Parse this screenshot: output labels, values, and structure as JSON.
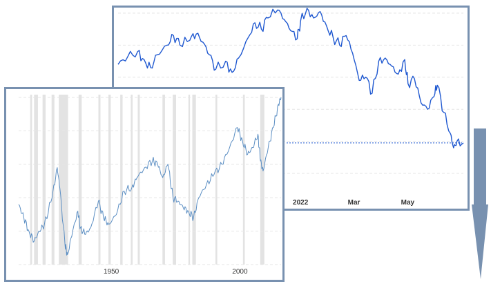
{
  "chart_data": [
    {
      "type": "line",
      "title": "",
      "xlabel": "",
      "ylabel": "",
      "x_tick_labels": [
        "2022",
        "Mar",
        "May"
      ],
      "x_ticks": [
        2022.0,
        2022.164,
        2022.329
      ],
      "xlim": [
        2021.44,
        2022.5
      ],
      "ylim": [
        0,
        100
      ],
      "grid": true,
      "series": [
        {
          "values": [
            [
              2021.44,
              68
            ],
            [
              2021.47,
              73
            ],
            [
              2021.5,
              76
            ],
            [
              2021.52,
              71
            ],
            [
              2021.54,
              66
            ],
            [
              2021.56,
              74
            ],
            [
              2021.59,
              80
            ],
            [
              2021.61,
              86
            ],
            [
              2021.63,
              80
            ],
            [
              2021.66,
              83
            ],
            [
              2021.68,
              87
            ],
            [
              2021.7,
              82
            ],
            [
              2021.72,
              74
            ],
            [
              2021.74,
              65
            ],
            [
              2021.77,
              70
            ],
            [
              2021.79,
              63
            ],
            [
              2021.81,
              72
            ],
            [
              2021.84,
              85
            ],
            [
              2021.86,
              94
            ],
            [
              2021.88,
              90
            ],
            [
              2021.9,
              97
            ],
            [
              2021.93,
              102
            ],
            [
              2021.95,
              96
            ],
            [
              2021.97,
              89
            ],
            [
              2021.99,
              84
            ],
            [
              2022.0,
              95
            ],
            [
              2022.02,
              103
            ],
            [
              2022.04,
              97
            ],
            [
              2022.06,
              101
            ],
            [
              2022.08,
              92
            ],
            [
              2022.1,
              85
            ],
            [
              2022.12,
              80
            ],
            [
              2022.14,
              86
            ],
            [
              2022.16,
              75
            ],
            [
              2022.18,
              58
            ],
            [
              2022.2,
              60
            ],
            [
              2022.22,
              50
            ],
            [
              2022.24,
              70
            ],
            [
              2022.26,
              72
            ],
            [
              2022.28,
              67
            ],
            [
              2022.3,
              62
            ],
            [
              2022.32,
              71
            ],
            [
              2022.33,
              56
            ],
            [
              2022.35,
              59
            ],
            [
              2022.37,
              44
            ],
            [
              2022.39,
              40
            ],
            [
              2022.41,
              48
            ],
            [
              2022.42,
              55
            ],
            [
              2022.44,
              38
            ],
            [
              2022.46,
              25
            ],
            [
              2022.47,
              16
            ],
            [
              2022.48,
              20
            ],
            [
              2022.5,
              19
            ]
          ]
        }
      ],
      "reference_line": {
        "y": 19,
        "style": "dotted"
      }
    },
    {
      "type": "line",
      "title": "",
      "xlabel": "",
      "ylabel": "",
      "x_tick_labels": [
        "1950",
        "2000"
      ],
      "x_ticks": [
        1950,
        2000
      ],
      "xlim": [
        1914,
        2016
      ],
      "ylim": [
        0,
        100
      ],
      "grid": true,
      "recession_bands": [
        [
          1918.5,
          1919.2
        ],
        [
          1920.0,
          1921.5
        ],
        [
          1923.3,
          1924.5
        ],
        [
          1926.8,
          1927.9
        ],
        [
          1929.6,
          1933.2
        ],
        [
          1937.3,
          1938.5
        ],
        [
          1945.0,
          1945.8
        ],
        [
          1948.9,
          1949.8
        ],
        [
          1953.5,
          1954.4
        ],
        [
          1957.6,
          1958.3
        ],
        [
          1960.3,
          1961.1
        ],
        [
          1969.9,
          1970.9
        ],
        [
          1973.9,
          1975.2
        ],
        [
          1980.0,
          1980.6
        ],
        [
          1981.5,
          1982.9
        ],
        [
          1990.5,
          1991.2
        ],
        [
          2001.2,
          2001.9
        ],
        [
          2007.9,
          2009.5
        ]
      ],
      "series": [
        {
          "values": [
            [
              1914,
              36
            ],
            [
              1916,
              28
            ],
            [
              1918,
              20
            ],
            [
              1920,
              14
            ],
            [
              1922,
              20
            ],
            [
              1924,
              24
            ],
            [
              1927,
              40
            ],
            [
              1929,
              58
            ],
            [
              1930,
              46
            ],
            [
              1932,
              12
            ],
            [
              1933,
              6
            ],
            [
              1935,
              20
            ],
            [
              1937,
              32
            ],
            [
              1938,
              22
            ],
            [
              1940,
              18
            ],
            [
              1942,
              22
            ],
            [
              1945,
              38
            ],
            [
              1947,
              28
            ],
            [
              1949,
              24
            ],
            [
              1952,
              30
            ],
            [
              1955,
              44
            ],
            [
              1958,
              46
            ],
            [
              1960,
              52
            ],
            [
              1963,
              58
            ],
            [
              1966,
              62
            ],
            [
              1968,
              60
            ],
            [
              1970,
              52
            ],
            [
              1972,
              60
            ],
            [
              1974,
              40
            ],
            [
              1976,
              38
            ],
            [
              1978,
              34
            ],
            [
              1980,
              32
            ],
            [
              1982,
              28
            ],
            [
              1984,
              40
            ],
            [
              1987,
              48
            ],
            [
              1990,
              54
            ],
            [
              1993,
              60
            ],
            [
              1996,
              70
            ],
            [
              1999,
              82
            ],
            [
              2001,
              74
            ],
            [
              2003,
              66
            ],
            [
              2005,
              70
            ],
            [
              2007,
              78
            ],
            [
              2008,
              62
            ],
            [
              2009,
              56
            ],
            [
              2011,
              70
            ],
            [
              2013,
              82
            ],
            [
              2015,
              96
            ],
            [
              2016,
              100
            ]
          ]
        }
      ]
    }
  ],
  "decoration": {
    "arrow_direction": "down",
    "arrow_color": "#7891b0",
    "line_color_back": "#1f58d0",
    "line_color_front": "#5b8ec3",
    "band_color": "#e3e3e3"
  }
}
